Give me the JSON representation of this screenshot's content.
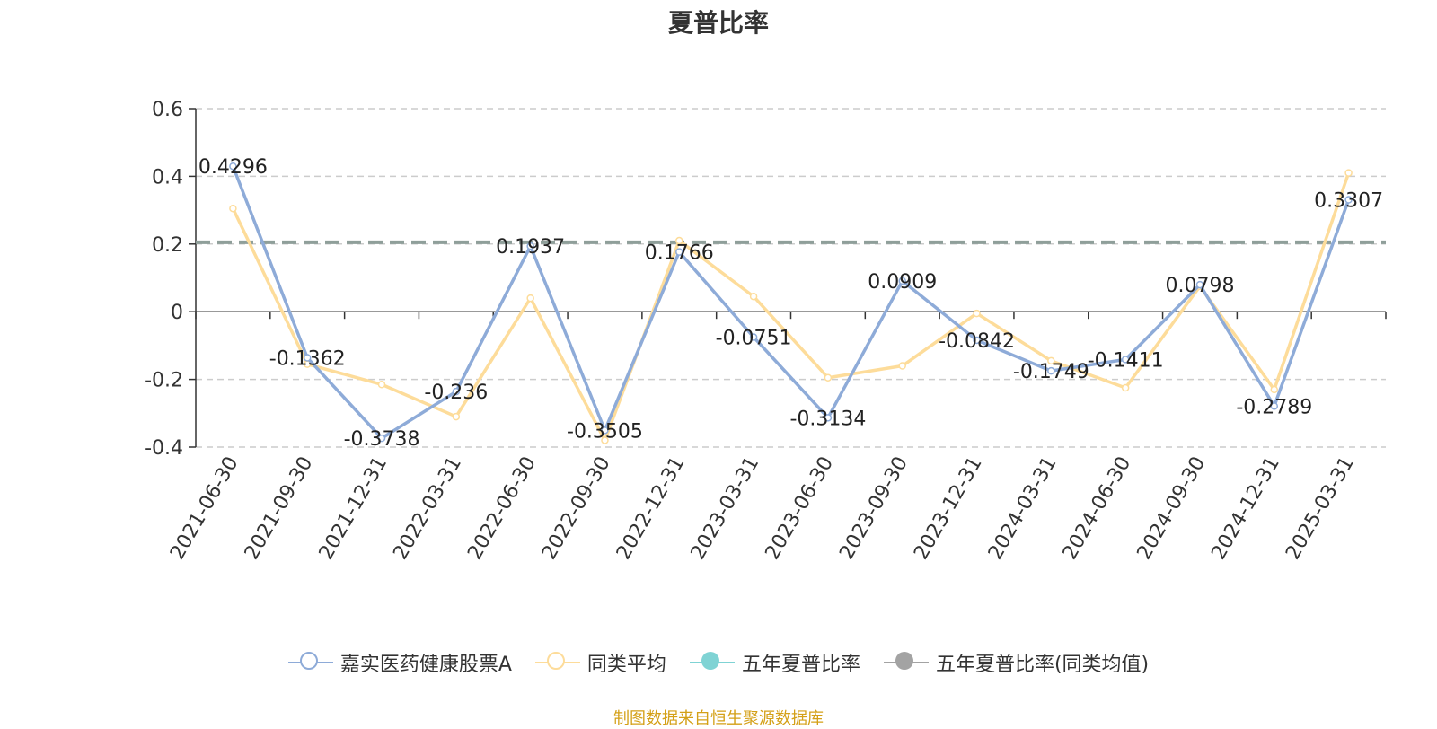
{
  "title": "夏普比率",
  "source_note": "制图数据来自恒生聚源数据库",
  "legend": [
    {
      "label": "嘉实医药健康股票A",
      "color": "#8eabd8",
      "style": "hollow"
    },
    {
      "label": "同类平均",
      "color": "#fddc9a",
      "style": "hollow"
    },
    {
      "label": "五年夏普比率",
      "color": "#7fd3d4",
      "style": "filled"
    },
    {
      "label": "五年夏普比率(同类均值)",
      "color": "#a3a3a3",
      "style": "filled"
    }
  ],
  "chart_data": {
    "type": "line",
    "categories": [
      "2021-06-30",
      "2021-09-30",
      "2021-12-31",
      "2022-03-31",
      "2022-06-30",
      "2022-09-30",
      "2022-12-31",
      "2023-03-31",
      "2023-06-30",
      "2023-09-30",
      "2023-12-31",
      "2024-03-31",
      "2024-06-30",
      "2024-09-30",
      "2024-12-31",
      "2025-03-31"
    ],
    "ylim": [
      -0.4,
      0.6
    ],
    "yticks": [
      "0.6",
      "0.4",
      "0.2",
      "0",
      "-0.2",
      "-0.4"
    ],
    "ytick_values": [
      0.6,
      0.4,
      0.2,
      0,
      -0.2,
      -0.4
    ],
    "grid": true,
    "legend_position": "bottom",
    "series": [
      {
        "name": "嘉实医药健康股票A",
        "color": "#8eabd8",
        "values": [
          0.4296,
          -0.1362,
          -0.3738,
          -0.236,
          0.1937,
          -0.3505,
          0.1766,
          -0.0751,
          -0.3134,
          0.0909,
          -0.0842,
          -0.1749,
          -0.1411,
          0.0798,
          -0.2789,
          0.3307
        ],
        "labels": [
          "0.4296",
          "-0.1362",
          "-0.3738",
          "-0.236",
          "0.1937",
          "-0.3505",
          "0.1766",
          "-0.0751",
          "-0.3134",
          "0.0909",
          "-0.0842",
          "-0.1749",
          "-0.1411",
          "0.0798",
          "-0.2789",
          "0.3307"
        ]
      },
      {
        "name": "同类平均",
        "color": "#fddc9a",
        "values": [
          0.305,
          -0.155,
          -0.215,
          -0.31,
          0.04,
          -0.38,
          0.21,
          0.045,
          -0.195,
          -0.16,
          -0.005,
          -0.145,
          -0.225,
          0.075,
          -0.23,
          0.41
        ]
      }
    ],
    "reference_lines": [
      {
        "name": "五年夏普比率",
        "value": 0.205,
        "color": "#7fd3d4"
      },
      {
        "name": "五年夏普比率(同类均值)",
        "value": 0.205,
        "color": "#a3a3a3"
      }
    ]
  }
}
